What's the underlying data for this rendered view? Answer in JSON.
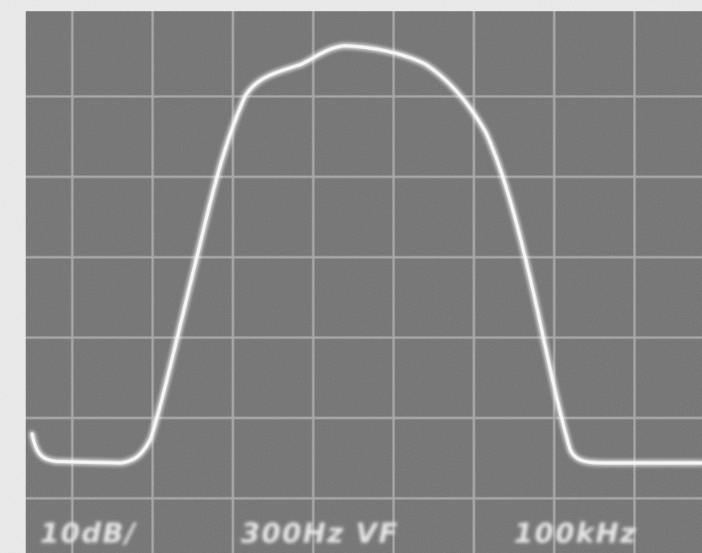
{
  "labels": {
    "scale": "10dB/",
    "filter": "300Hz VF",
    "span": "100kHz"
  }
}
